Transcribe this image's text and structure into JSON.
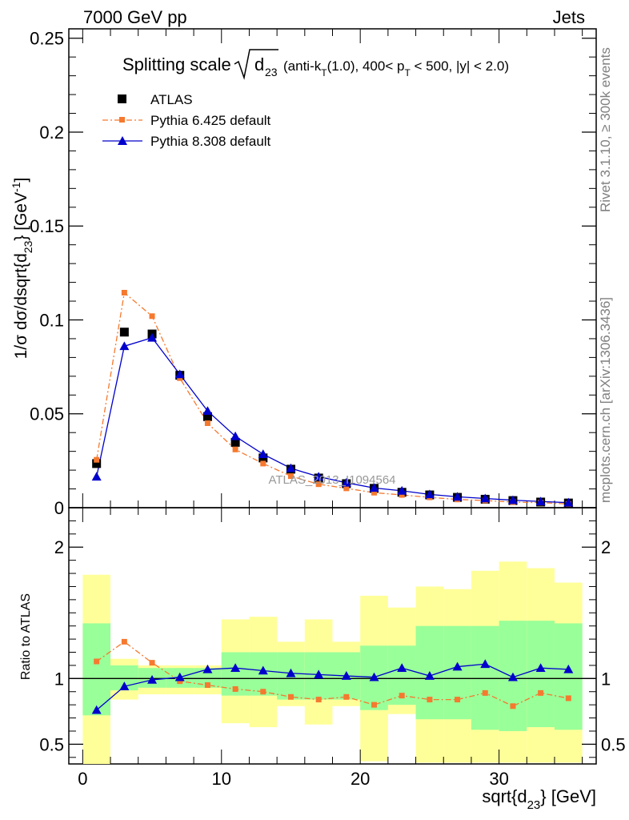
{
  "header": {
    "left": "7000 GeV pp",
    "right": "Jets"
  },
  "title": {
    "prefix": "Splitting scale",
    "var": "d",
    "var_sub": "23",
    "cond_a": "(anti-k",
    "cond_a_sub": "T",
    "cond_b": "(1.0), 400< p",
    "cond_b_sub": "T",
    "cond_c": " < 500, |y| < 2.0)"
  },
  "side_labels": {
    "rivet": "Rivet 3.1.10, ≥ 300k events",
    "mcplots": "mcplots.cern.ch [arXiv:1306.3436]"
  },
  "watermark": "ATLAS_2013_I1094564",
  "colors": {
    "data": "#000000",
    "pythia6": "#f5792f",
    "pythia8": "#0000cc",
    "band_inner": "#99ff99",
    "band_outer": "#ffff99"
  },
  "chart_data": [
    {
      "type": "scatter",
      "panel": "main",
      "ylabel": {
        "a": "1/σ dσ/dsqrt{d",
        "a_sub": "23",
        "b": "} [GeV",
        "b_sup": "-1",
        "c": "]"
      },
      "xlim": [
        -1,
        37
      ],
      "ylim": [
        0,
        0.255
      ],
      "yticks": [
        0,
        0.05,
        0.1,
        0.15,
        0.2,
        0.25
      ],
      "ytick_labels": [
        "0",
        "0.05",
        "0.1",
        "0.15",
        "0.2",
        "0.25"
      ],
      "x": [
        1,
        3,
        5,
        7,
        9,
        11,
        13,
        15,
        17,
        19,
        21,
        23,
        25,
        27,
        29,
        31,
        33,
        35
      ],
      "legend_position": "top-left",
      "series": [
        {
          "name": "ATLAS",
          "marker": "square",
          "values": [
            0.0235,
            0.0935,
            0.0925,
            0.0705,
            0.0485,
            0.0348,
            0.0265,
            0.0205,
            0.0158,
            0.0128,
            0.0103,
            0.0082,
            0.0068,
            0.0055,
            0.0045,
            0.0038,
            0.003,
            0.0025
          ]
        },
        {
          "name": "Pythia 6.425 default",
          "marker": "small-square",
          "line": "dash-dot",
          "values": [
            0.0255,
            0.1145,
            0.102,
            0.069,
            0.045,
            0.031,
            0.0235,
            0.0168,
            0.0125,
            0.0103,
            0.008,
            0.0068,
            0.0055,
            0.0044,
            0.0038,
            0.003,
            0.0027,
            0.002
          ]
        },
        {
          "name": "Pythia 8.308 default",
          "marker": "triangle",
          "line": "solid",
          "values": [
            0.0165,
            0.086,
            0.0905,
            0.071,
            0.0515,
            0.038,
            0.0285,
            0.021,
            0.0165,
            0.0133,
            0.0105,
            0.009,
            0.0071,
            0.0058,
            0.0049,
            0.004,
            0.0033,
            0.0027
          ]
        }
      ]
    },
    {
      "type": "line",
      "panel": "ratio",
      "ylabel": "Ratio to ATLAS",
      "xlabel": {
        "a": "sqrt{d",
        "a_sub": "23",
        "b": "} [GeV]"
      },
      "xlim": [
        -1,
        37
      ],
      "ylim": [
        0.35,
        2.3
      ],
      "xticks": [
        0,
        10,
        20,
        30
      ],
      "xtick_labels": [
        "0",
        "10",
        "20",
        "30"
      ],
      "yticks": [
        0.5,
        1,
        2
      ],
      "ytick_labels": [
        "0.5",
        "1",
        "2"
      ],
      "reference_line": 1,
      "x": [
        1,
        3,
        5,
        7,
        9,
        11,
        13,
        15,
        17,
        19,
        21,
        23,
        25,
        27,
        29,
        31,
        33,
        35
      ],
      "bin_edges": [
        0,
        2,
        4,
        6,
        8,
        10,
        12,
        14,
        16,
        18,
        20,
        22,
        24,
        26,
        28,
        30,
        32,
        34,
        36
      ],
      "band_inner": {
        "lo": [
          0.72,
          0.91,
          0.93,
          0.93,
          0.93,
          0.87,
          0.87,
          0.84,
          0.84,
          0.84,
          0.76,
          0.8,
          0.69,
          0.69,
          0.61,
          0.6,
          0.63,
          0.61
        ],
        "hi": [
          1.42,
          1.1,
          1.08,
          1.08,
          1.08,
          1.2,
          1.2,
          1.2,
          1.2,
          1.2,
          1.25,
          1.25,
          1.4,
          1.4,
          1.4,
          1.44,
          1.44,
          1.42
        ]
      },
      "band_outer": {
        "lo": [
          0.35,
          0.84,
          0.88,
          0.88,
          0.88,
          0.66,
          0.63,
          0.79,
          0.65,
          0.79,
          0.37,
          0.73,
          0.36,
          0.36,
          0.36,
          0.36,
          0.36,
          0.36
        ],
        "hi": [
          1.79,
          1.15,
          1.1,
          1.1,
          1.1,
          1.45,
          1.47,
          1.28,
          1.45,
          1.28,
          1.63,
          1.54,
          1.7,
          1.68,
          1.82,
          1.89,
          1.84,
          1.73
        ]
      },
      "series": [
        {
          "name": "Pythia 6.425 default",
          "values": [
            1.13,
            1.28,
            1.12,
            0.98,
            0.95,
            0.92,
            0.9,
            0.86,
            0.84,
            0.86,
            0.8,
            0.87,
            0.84,
            0.84,
            0.89,
            0.79,
            0.89,
            0.85
          ]
        },
        {
          "name": "Pythia 8.308 default",
          "values": [
            0.76,
            0.94,
            0.99,
            1.01,
            1.07,
            1.08,
            1.06,
            1.04,
            1.03,
            1.02,
            1.01,
            1.08,
            1.02,
            1.09,
            1.11,
            1.01,
            1.08,
            1.07
          ]
        }
      ]
    }
  ]
}
